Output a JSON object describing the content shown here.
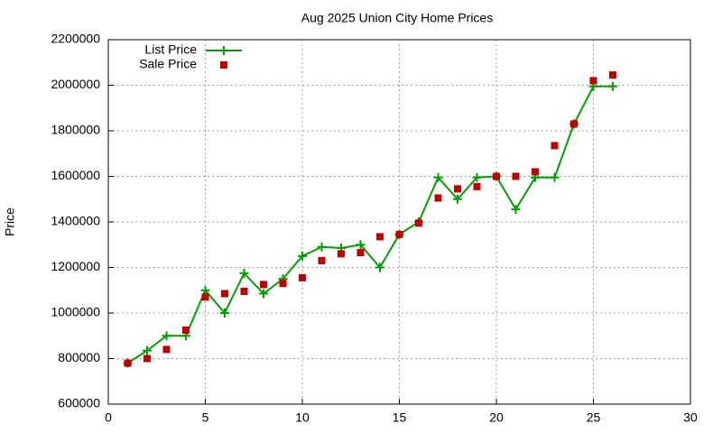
{
  "chart_data": {
    "type": "line",
    "title": "Aug 2025 Union City Home Prices",
    "y_label": "Price",
    "x": [
      1,
      2,
      3,
      4,
      5,
      6,
      7,
      8,
      9,
      10,
      11,
      12,
      13,
      14,
      15,
      16,
      17,
      18,
      19,
      20,
      21,
      22,
      23,
      24,
      25,
      26
    ],
    "series": [
      {
        "name": "List Price",
        "color": "#00a000",
        "style": "linespoints",
        "values": [
          780000,
          835000,
          900000,
          900000,
          1100000,
          1000000,
          1175000,
          1085000,
          1150000,
          1250000,
          1290000,
          1285000,
          1300000,
          1200000,
          1345000,
          1400000,
          1595000,
          1500000,
          1595000,
          1600000,
          1455000,
          1595000,
          1595000,
          1830000,
          1995000,
          1995000
        ]
      },
      {
        "name": "Sale Price",
        "color": "#c00000",
        "style": "points",
        "values": [
          780000,
          800000,
          840000,
          925000,
          1070000,
          1085000,
          1095000,
          1125000,
          1130000,
          1155000,
          1230000,
          1260000,
          1265000,
          1335000,
          1345000,
          1395000,
          1505000,
          1545000,
          1555000,
          1600000,
          1600000,
          1620000,
          1735000,
          1830000,
          2020000,
          2045000
        ]
      }
    ],
    "xlim": [
      0,
      30
    ],
    "xticks": [
      0,
      5,
      10,
      15,
      20,
      25,
      30
    ],
    "ylim": [
      600000,
      2200000
    ],
    "yticks": [
      600000,
      800000,
      1000000,
      1200000,
      1400000,
      1600000,
      1800000,
      2000000,
      2200000
    ],
    "grid": true,
    "legend": "top-left"
  }
}
